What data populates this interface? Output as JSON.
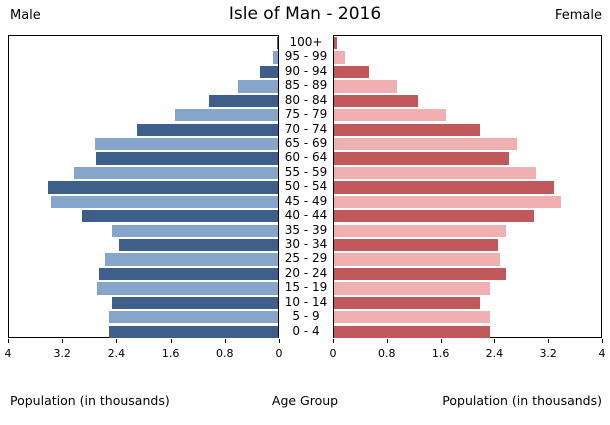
{
  "header": {
    "male_label": "Male",
    "title": "Isle of Man - 2016",
    "female_label": "Female"
  },
  "footer": {
    "left_axis_label": "Population (in thousands)",
    "center_label": "Age Group",
    "right_axis_label": "Population (in thousands)"
  },
  "colors": {
    "male_dark": "#3d5f8a",
    "male_light": "#85a6ca",
    "female_dark": "#c1585c",
    "female_light": "#f0b0b2",
    "border": "#000000"
  },
  "chart_data": {
    "type": "bar",
    "subtype": "population-pyramid",
    "title": "Isle of Man - 2016",
    "units": "thousands",
    "categories": [
      "100+",
      "95 - 99",
      "90 - 94",
      "85 - 89",
      "80 - 84",
      "75 - 79",
      "70 - 74",
      "65 - 69",
      "60 - 64",
      "55 - 59",
      "50 - 54",
      "45 - 49",
      "40 - 44",
      "35 - 39",
      "30 - 34",
      "25 - 29",
      "20 - 24",
      "15 - 19",
      "10 - 14",
      "5 - 9",
      "0 - 4"
    ],
    "series": [
      {
        "name": "Male",
        "side": "left",
        "values": [
          0.02,
          0.08,
          0.27,
          0.6,
          1.02,
          1.53,
          2.1,
          2.72,
          2.7,
          3.04,
          3.42,
          3.38,
          2.92,
          2.47,
          2.36,
          2.58,
          2.66,
          2.69,
          2.47,
          2.51,
          2.51
        ]
      },
      {
        "name": "Female",
        "side": "right",
        "values": [
          0.05,
          0.16,
          0.52,
          0.94,
          1.26,
          1.68,
          2.19,
          2.74,
          2.62,
          3.03,
          3.3,
          3.4,
          2.99,
          2.58,
          2.45,
          2.49,
          2.58,
          2.33,
          2.19,
          2.34,
          2.34
        ]
      }
    ],
    "x_axis": {
      "max": 4,
      "male_tick_labels": [
        "4",
        "3.2",
        "2.4",
        "1.6",
        "0.8",
        "0"
      ],
      "female_tick_labels": [
        "0",
        "0.8",
        "1.6",
        "2.4",
        "3.2",
        "4"
      ]
    },
    "y_axis_label": "Age Group",
    "grid": false,
    "legend": false
  }
}
